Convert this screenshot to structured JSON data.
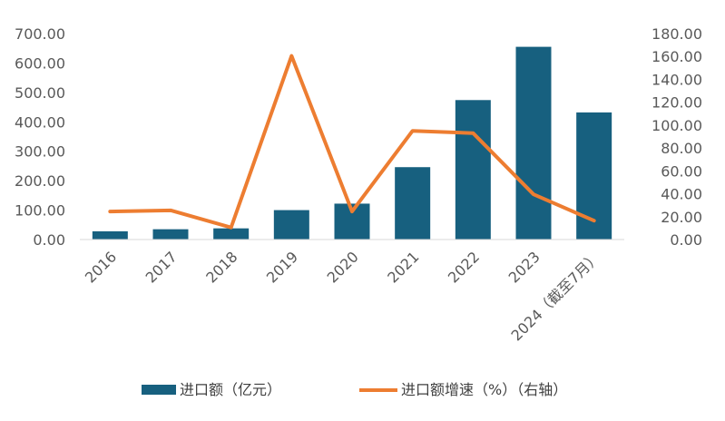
{
  "chart_data": {
    "type": "bar+line",
    "categories": [
      "2016",
      "2017",
      "2018",
      "2019",
      "2020",
      "2021",
      "2022",
      "2023",
      "2024（截至7月）"
    ],
    "series": [
      {
        "name": "进口额（亿元）",
        "type": "bar",
        "axis": "left",
        "color": "#17607F",
        "values": [
          28,
          35,
          38,
          100,
          122,
          246,
          474,
          655,
          432
        ]
      },
      {
        "name": "进口额增速（%）（右轴）",
        "type": "line",
        "axis": "right",
        "color": "#ED7D31",
        "values": [
          24.5,
          25.5,
          10.5,
          160.5,
          24.5,
          95,
          93,
          39.5,
          16.5
        ]
      }
    ],
    "y_left": {
      "min": 0,
      "max": 700,
      "step": 100,
      "ticks": [
        "0.00",
        "100.00",
        "200.00",
        "300.00",
        "400.00",
        "500.00",
        "600.00",
        "700.00"
      ]
    },
    "y_right": {
      "min": 0,
      "max": 180,
      "step": 20,
      "ticks": [
        "0.00",
        "20.00",
        "40.00",
        "60.00",
        "80.00",
        "100.00",
        "120.00",
        "140.00",
        "160.00",
        "180.00"
      ]
    },
    "grid": false,
    "legend_position": "bottom",
    "title": "",
    "xlabel": "",
    "ylabel": ""
  }
}
